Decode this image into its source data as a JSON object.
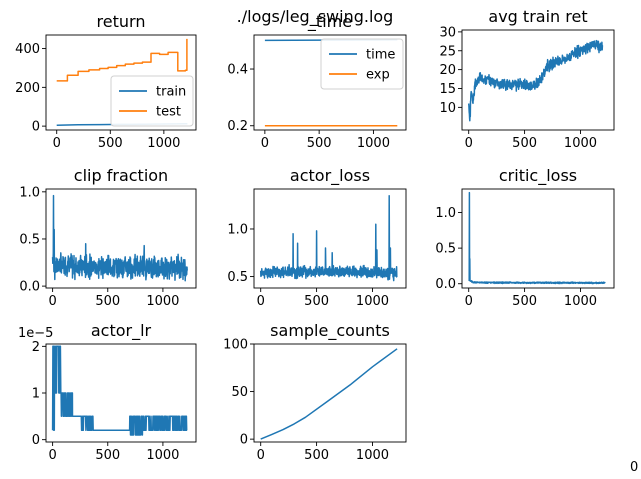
{
  "figure": {
    "suptitle": "./logs/leg_swing.log",
    "edge_text": "0"
  },
  "colors": {
    "blue": "#1f77b4",
    "orange": "#ff7f0e"
  },
  "chart_data": [
    {
      "id": "return",
      "type": "line",
      "title": "return",
      "xlim": [
        -100,
        1300
      ],
      "ylim": [
        -20,
        470
      ],
      "xticks": [
        0,
        500,
        1000
      ],
      "xticklabels": [
        "0",
        "500",
        "1000"
      ],
      "yticks": [
        0,
        200,
        400
      ],
      "yticklabels": [
        "0",
        "200",
        "400"
      ],
      "legend": "lower right",
      "series": [
        {
          "name": "train",
          "color": "#1f77b4",
          "x": [
            0,
            200,
            400,
            600,
            800,
            1000,
            1220
          ],
          "y": [
            5,
            7,
            8,
            9,
            10,
            11,
            12
          ]
        },
        {
          "name": "test",
          "color": "#ff7f0e",
          "step": true,
          "x": [
            0,
            100,
            200,
            300,
            400,
            480,
            560,
            640,
            720,
            800,
            880,
            960,
            1040,
            1130,
            1200,
            1215
          ],
          "y": [
            233,
            262,
            282,
            290,
            297,
            303,
            312,
            320,
            325,
            330,
            375,
            370,
            380,
            285,
            288,
            450
          ]
        }
      ]
    },
    {
      "id": "time",
      "type": "line",
      "title": "_time",
      "xlim": [
        -100,
        1300
      ],
      "ylim": [
        0.185,
        0.52
      ],
      "xticks": [
        0,
        500,
        1000
      ],
      "xticklabels": [
        "0",
        "500",
        "1000"
      ],
      "yticks": [
        0.2,
        0.4
      ],
      "yticklabels": [
        "0.2",
        "0.4"
      ],
      "legend": "upper right",
      "series": [
        {
          "name": "time",
          "color": "#1f77b4",
          "x": [
            0,
            1220
          ],
          "y": [
            0.501,
            0.503
          ]
        },
        {
          "name": "exp",
          "color": "#ff7f0e",
          "x": [
            0,
            1220
          ],
          "y": [
            0.2,
            0.2
          ]
        }
      ]
    },
    {
      "id": "avg_train_ret",
      "type": "line",
      "title": "avg train ret",
      "xlim": [
        -60,
        1300
      ],
      "ylim": [
        4,
        30.5
      ],
      "xticks": [
        0,
        500,
        1000
      ],
      "xticklabels": [
        "0",
        "500",
        "1000"
      ],
      "yticks": [
        10,
        15,
        20,
        25,
        30
      ],
      "yticklabels": [
        "10",
        "15",
        "20",
        "25",
        "30"
      ],
      "noisy": true,
      "seed": 3,
      "series": [
        {
          "color": "#1f77b4",
          "noise": 1.2,
          "x": [
            0,
            10,
            20,
            40,
            60,
            100,
            150,
            200,
            300,
            400,
            500,
            600,
            650,
            700,
            750,
            800,
            900,
            1000,
            1100,
            1200
          ],
          "y": [
            12,
            6,
            14,
            12,
            16,
            18,
            17.5,
            17,
            16,
            16,
            16,
            16,
            17.5,
            21,
            21.5,
            22,
            23.5,
            25,
            26.5,
            26
          ]
        }
      ]
    },
    {
      "id": "clip_fraction",
      "type": "line",
      "title": "clip fraction",
      "xlim": [
        -60,
        1300
      ],
      "ylim": [
        -0.02,
        1.03
      ],
      "xticks": [
        0,
        500,
        1000
      ],
      "xticklabels": [
        "0",
        "500",
        "1000"
      ],
      "yticks": [
        0.0,
        0.5,
        1.0
      ],
      "yticklabels": [
        "0.0",
        "0.5",
        "1.0"
      ],
      "noisy": true,
      "seed": 7,
      "series": [
        {
          "color": "#1f77b4",
          "noise": 0.1,
          "spikes": [
            [
              8,
              0.96
            ],
            [
              14,
              0.6
            ],
            [
              300,
              0.45
            ],
            [
              830,
              0.43
            ]
          ],
          "x": [
            0,
            20,
            60,
            200,
            600,
            1000,
            1220
          ],
          "y": [
            0.3,
            0.2,
            0.22,
            0.21,
            0.2,
            0.2,
            0.2
          ]
        }
      ]
    },
    {
      "id": "actor_loss",
      "type": "line",
      "title": "actor_loss",
      "xlim": [
        -60,
        1300
      ],
      "ylim": [
        0.38,
        1.42
      ],
      "xticks": [
        0,
        500,
        1000
      ],
      "xticklabels": [
        "0",
        "500",
        "1000"
      ],
      "yticks": [
        0.5,
        1.0
      ],
      "yticklabels": [
        "0.5",
        "1.0"
      ],
      "noisy": true,
      "seed": 11,
      "series": [
        {
          "color": "#1f77b4",
          "noise": 0.05,
          "spikes": [
            [
              290,
              0.95
            ],
            [
              330,
              0.85
            ],
            [
              500,
              0.98
            ],
            [
              580,
              0.8
            ],
            [
              640,
              0.75
            ],
            [
              1030,
              1.05
            ],
            [
              1040,
              0.78
            ],
            [
              1150,
              1.35
            ],
            [
              1160,
              0.8
            ]
          ],
          "x": [
            0,
            100,
            300,
            600,
            900,
            1220
          ],
          "y": [
            0.53,
            0.55,
            0.55,
            0.55,
            0.55,
            0.53
          ]
        }
      ]
    },
    {
      "id": "critic_loss",
      "type": "line",
      "title": "critic_loss",
      "xlim": [
        -60,
        1300
      ],
      "ylim": [
        -0.06,
        1.33
      ],
      "xticks": [
        0,
        500,
        1000
      ],
      "xticklabels": [
        "0",
        "500",
        "1000"
      ],
      "yticks": [
        0.0,
        0.5,
        1.0
      ],
      "yticklabels": [
        "0.0",
        "0.5",
        "1.0"
      ],
      "noisy": true,
      "seed": 5,
      "series": [
        {
          "color": "#1f77b4",
          "noise": 0.008,
          "spikes": [
            [
              5,
              1.28
            ],
            [
              10,
              0.35
            ]
          ],
          "x": [
            0,
            15,
            40,
            200,
            1220
          ],
          "y": [
            0.05,
            0.04,
            0.02,
            0.015,
            0.012
          ]
        }
      ]
    },
    {
      "id": "actor_lr",
      "type": "line",
      "title": "actor_lr",
      "scale_label": "1e−5",
      "xlim": [
        -60,
        1300
      ],
      "ylim": [
        -0.05,
        2.05
      ],
      "xticks": [
        0,
        500,
        1000
      ],
      "xticklabels": [
        "0",
        "500",
        "1000"
      ],
      "yticks": [
        0,
        1,
        2
      ],
      "yticklabels": [
        "0",
        "1",
        "2"
      ],
      "noisy": true,
      "seed": 9,
      "series": [
        {
          "color": "#1f77b4",
          "toggle": true,
          "segments": [
            [
              0,
              20,
              0.2,
              2.0
            ],
            [
              20,
              50,
              1.0,
              2.0
            ],
            [
              50,
              80,
              1.0,
              2.0
            ],
            [
              80,
              180,
              0.5,
              1.0
            ],
            [
              180,
              260,
              0.5,
              0.5
            ],
            [
              260,
              380,
              0.2,
              0.5
            ],
            [
              380,
              700,
              0.2,
              0.2
            ],
            [
              700,
              820,
              0.1,
              0.5
            ],
            [
              820,
              1220,
              0.2,
              0.5
            ]
          ]
        }
      ]
    },
    {
      "id": "sample_counts",
      "type": "line",
      "title": "sample_counts",
      "xlim": [
        -60,
        1300
      ],
      "ylim": [
        -3,
        100
      ],
      "xticks": [
        0,
        500,
        1000
      ],
      "xticklabels": [
        "0",
        "500",
        "1000"
      ],
      "yticks": [
        0,
        50,
        100
      ],
      "yticklabels": [
        "0",
        "50",
        "100"
      ],
      "series": [
        {
          "color": "#1f77b4",
          "x": [
            0,
            100,
            200,
            300,
            400,
            600,
            800,
            1000,
            1220
          ],
          "y": [
            0,
            5,
            10,
            16,
            23,
            40,
            57,
            76,
            95
          ]
        }
      ]
    }
  ]
}
